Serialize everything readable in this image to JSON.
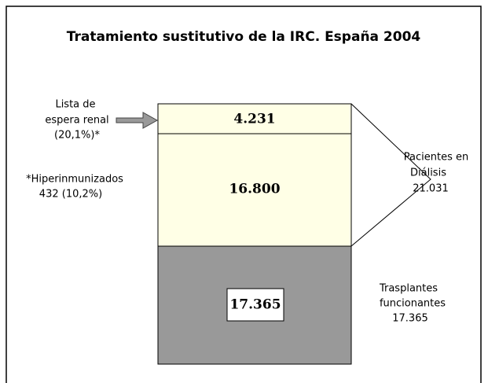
{
  "title": "Tratamiento sustitutivo de la IRC. España 2004",
  "segments": [
    {
      "label": "4.231"
    },
    {
      "label": "16.800"
    },
    {
      "label": "17.365"
    }
  ],
  "waiting_list": {
    "lines": [
      "Lista de",
      "espera renal",
      "(20,1%)*"
    ]
  },
  "hyperimmunized": {
    "lines": [
      "*Hiperinmunizados",
      "432  (10,2%)"
    ]
  },
  "dialysis": {
    "lines": [
      "Pacientes en",
      "Diálisis",
      "21.031"
    ]
  },
  "transplants": {
    "lines": [
      "Trasplantes",
      "funcionantes",
      "17.365"
    ]
  }
}
